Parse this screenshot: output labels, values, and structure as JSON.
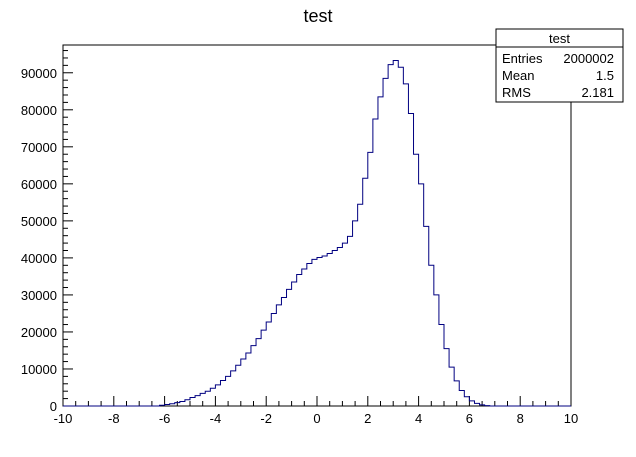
{
  "chart_data": {
    "type": "histogram",
    "title": "test",
    "xlabel": "",
    "ylabel": "",
    "xlim": [
      -10,
      10
    ],
    "ylim": [
      0,
      97500
    ],
    "bin_width": 0.2,
    "x_ticks": [
      -10,
      -8,
      -6,
      -4,
      -2,
      0,
      2,
      4,
      6,
      8,
      10
    ],
    "y_ticks": [
      0,
      10000,
      20000,
      30000,
      40000,
      50000,
      60000,
      70000,
      80000,
      90000
    ],
    "line_color": "#000080",
    "bins": [
      {
        "x": -6.2,
        "y": 200
      },
      {
        "x": -6.0,
        "y": 400
      },
      {
        "x": -5.8,
        "y": 600
      },
      {
        "x": -5.6,
        "y": 900
      },
      {
        "x": -5.4,
        "y": 1200
      },
      {
        "x": -5.2,
        "y": 1700
      },
      {
        "x": -5.0,
        "y": 2300
      },
      {
        "x": -4.8,
        "y": 2800
      },
      {
        "x": -4.6,
        "y": 3400
      },
      {
        "x": -4.4,
        "y": 4000
      },
      {
        "x": -4.2,
        "y": 4800
      },
      {
        "x": -4.0,
        "y": 5700
      },
      {
        "x": -3.8,
        "y": 6900
      },
      {
        "x": -3.6,
        "y": 8000
      },
      {
        "x": -3.4,
        "y": 9500
      },
      {
        "x": -3.2,
        "y": 11000
      },
      {
        "x": -3.0,
        "y": 12700
      },
      {
        "x": -2.8,
        "y": 14300
      },
      {
        "x": -2.6,
        "y": 16300
      },
      {
        "x": -2.4,
        "y": 18200
      },
      {
        "x": -2.2,
        "y": 20500
      },
      {
        "x": -2.0,
        "y": 22700
      },
      {
        "x": -1.8,
        "y": 25000
      },
      {
        "x": -1.6,
        "y": 27300
      },
      {
        "x": -1.4,
        "y": 29300
      },
      {
        "x": -1.2,
        "y": 31500
      },
      {
        "x": -1.0,
        "y": 33500
      },
      {
        "x": -0.8,
        "y": 35500
      },
      {
        "x": -0.6,
        "y": 37000
      },
      {
        "x": -0.4,
        "y": 38500
      },
      {
        "x": -0.2,
        "y": 39600
      },
      {
        "x": 0.0,
        "y": 40100
      },
      {
        "x": 0.2,
        "y": 40500
      },
      {
        "x": 0.4,
        "y": 41200
      },
      {
        "x": 0.6,
        "y": 42000
      },
      {
        "x": 0.8,
        "y": 42800
      },
      {
        "x": 1.0,
        "y": 44000
      },
      {
        "x": 1.2,
        "y": 45800
      },
      {
        "x": 1.4,
        "y": 50000
      },
      {
        "x": 1.6,
        "y": 54500
      },
      {
        "x": 1.8,
        "y": 61500
      },
      {
        "x": 2.0,
        "y": 68500
      },
      {
        "x": 2.2,
        "y": 77500
      },
      {
        "x": 2.4,
        "y": 83500
      },
      {
        "x": 2.6,
        "y": 88500
      },
      {
        "x": 2.8,
        "y": 92200
      },
      {
        "x": 3.0,
        "y": 93300
      },
      {
        "x": 3.2,
        "y": 91500
      },
      {
        "x": 3.4,
        "y": 87000
      },
      {
        "x": 3.6,
        "y": 79000
      },
      {
        "x": 3.8,
        "y": 68000
      },
      {
        "x": 4.0,
        "y": 60000
      },
      {
        "x": 4.2,
        "y": 48500
      },
      {
        "x": 4.4,
        "y": 38000
      },
      {
        "x": 4.6,
        "y": 30000
      },
      {
        "x": 4.8,
        "y": 22000
      },
      {
        "x": 5.0,
        "y": 15500
      },
      {
        "x": 5.2,
        "y": 10500
      },
      {
        "x": 5.4,
        "y": 6800
      },
      {
        "x": 5.6,
        "y": 4200
      },
      {
        "x": 5.8,
        "y": 2500
      },
      {
        "x": 6.0,
        "y": 1400
      },
      {
        "x": 6.2,
        "y": 700
      },
      {
        "x": 6.4,
        "y": 300
      },
      {
        "x": 6.6,
        "y": 100
      }
    ],
    "stats_box": {
      "title": "test",
      "rows": [
        {
          "label": "Entries",
          "value": "2000002"
        },
        {
          "label": "Mean",
          "value": "1.5"
        },
        {
          "label": "RMS",
          "value": "2.181"
        }
      ]
    }
  }
}
